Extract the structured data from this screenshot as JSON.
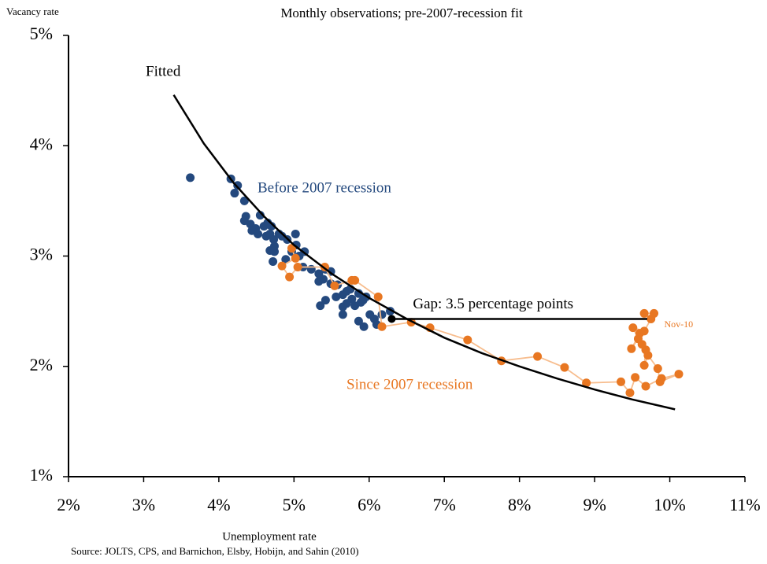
{
  "chart_data": {
    "type": "scatter",
    "title": "Monthly observations; pre-2007-recession fit",
    "ylabel": "Vacancy rate",
    "xlabel": "Unemployment rate",
    "source": "Source: JOLTS, CPS, and Barnichon, Elsby, Hobijn, and Sahin (2010)",
    "xlim": [
      2,
      11
    ],
    "ylim": [
      1,
      5
    ],
    "xticks": [
      {
        "value": 2,
        "label": "2%"
      },
      {
        "value": 3,
        "label": "3%"
      },
      {
        "value": 4,
        "label": "4%"
      },
      {
        "value": 5,
        "label": "5%"
      },
      {
        "value": 6,
        "label": "6%"
      },
      {
        "value": 7,
        "label": "7%"
      },
      {
        "value": 8,
        "label": "8%"
      },
      {
        "value": 9,
        "label": "9%"
      },
      {
        "value": 10,
        "label": "10%"
      },
      {
        "value": 11,
        "label": "11%"
      }
    ],
    "yticks": [
      {
        "value": 1,
        "label": "1%"
      },
      {
        "value": 2,
        "label": "2%"
      },
      {
        "value": 3,
        "label": "3%"
      },
      {
        "value": 4,
        "label": "4%"
      },
      {
        "value": 5,
        "label": "5%"
      }
    ],
    "grid": false,
    "series": [
      {
        "name": "Before 2007 recession",
        "color": "#24497e",
        "mode": "markers",
        "x": [
          3.62,
          4.16,
          4.25,
          4.21,
          4.34,
          4.36,
          4.34,
          4.42,
          4.49,
          4.55,
          4.44,
          4.52,
          4.6,
          4.65,
          4.7,
          4.63,
          4.68,
          4.73,
          4.68,
          4.74,
          4.72,
          4.84,
          4.91,
          5.02,
          5.03,
          4.97,
          4.89,
          5.07,
          5.14,
          5.12,
          5.23,
          5.33,
          5.39,
          5.42,
          5.49,
          5.49,
          5.33,
          5.35,
          5.58,
          5.65,
          5.56,
          5.7,
          5.75,
          5.77,
          5.81,
          5.86,
          5.89,
          5.65,
          5.65,
          5.92,
          5.96,
          5.86,
          5.93,
          6.01,
          6.07,
          6.1,
          6.17,
          6.28,
          5.7,
          5.42,
          4.8,
          4.74
        ],
        "values": [
          3.71,
          3.7,
          3.64,
          3.57,
          3.5,
          3.36,
          3.32,
          3.29,
          3.25,
          3.37,
          3.23,
          3.2,
          3.27,
          3.3,
          3.27,
          3.18,
          3.2,
          3.15,
          3.05,
          3.04,
          2.95,
          3.18,
          3.15,
          3.2,
          3.1,
          3.04,
          2.97,
          3.0,
          3.04,
          2.9,
          2.88,
          2.84,
          2.79,
          2.88,
          2.86,
          2.75,
          2.77,
          2.55,
          2.74,
          2.65,
          2.63,
          2.68,
          2.7,
          2.61,
          2.55,
          2.66,
          2.58,
          2.54,
          2.47,
          2.6,
          2.63,
          2.41,
          2.36,
          2.47,
          2.43,
          2.38,
          2.47,
          2.5,
          2.57,
          2.6,
          3.2,
          3.09
        ]
      },
      {
        "name": "Since 2007 recession",
        "color": "#e87722",
        "line_color": "#f7bd8e",
        "mode": "lines+markers",
        "x": [
          4.97,
          5.02,
          4.84,
          4.94,
          5.05,
          5.41,
          5.54,
          5.77,
          5.81,
          6.12,
          6.17,
          6.56,
          6.81,
          7.31,
          7.76,
          8.24,
          8.6,
          8.89,
          9.35,
          9.47,
          9.54,
          9.68,
          9.89,
          10.12,
          9.87,
          9.84,
          9.71,
          9.66,
          9.68,
          9.63,
          9.6,
          9.49,
          9.58,
          9.51,
          9.66,
          9.75,
          9.66,
          9.79
        ],
        "values": [
          3.07,
          2.98,
          2.91,
          2.81,
          2.9,
          2.9,
          2.73,
          2.78,
          2.78,
          2.63,
          2.36,
          2.4,
          2.35,
          2.24,
          2.05,
          2.09,
          1.99,
          1.85,
          1.86,
          1.76,
          1.9,
          1.82,
          1.89,
          1.93,
          1.86,
          1.98,
          2.1,
          2.01,
          2.15,
          2.2,
          2.3,
          2.16,
          2.25,
          2.35,
          2.32,
          2.43,
          2.48,
          2.48
        ]
      },
      {
        "name": "Fitted",
        "color": "#000000",
        "mode": "line",
        "x": [
          3.4,
          3.8,
          4.2,
          4.6,
          5.0,
          5.5,
          6.0,
          6.5,
          7.0,
          7.5,
          8.0,
          8.5,
          9.0,
          9.5,
          10.07
        ],
        "values": [
          4.46,
          4.02,
          3.66,
          3.36,
          3.1,
          2.84,
          2.62,
          2.43,
          2.26,
          2.12,
          2.0,
          1.89,
          1.79,
          1.7,
          1.61
        ]
      }
    ],
    "annotations": [
      {
        "text": "Gap: 3.5 percentage points",
        "x": [
          6.3,
          9.7
        ],
        "y": 2.43
      },
      {
        "text": "Nov-10",
        "x": 9.79,
        "y": 2.48
      }
    ]
  }
}
